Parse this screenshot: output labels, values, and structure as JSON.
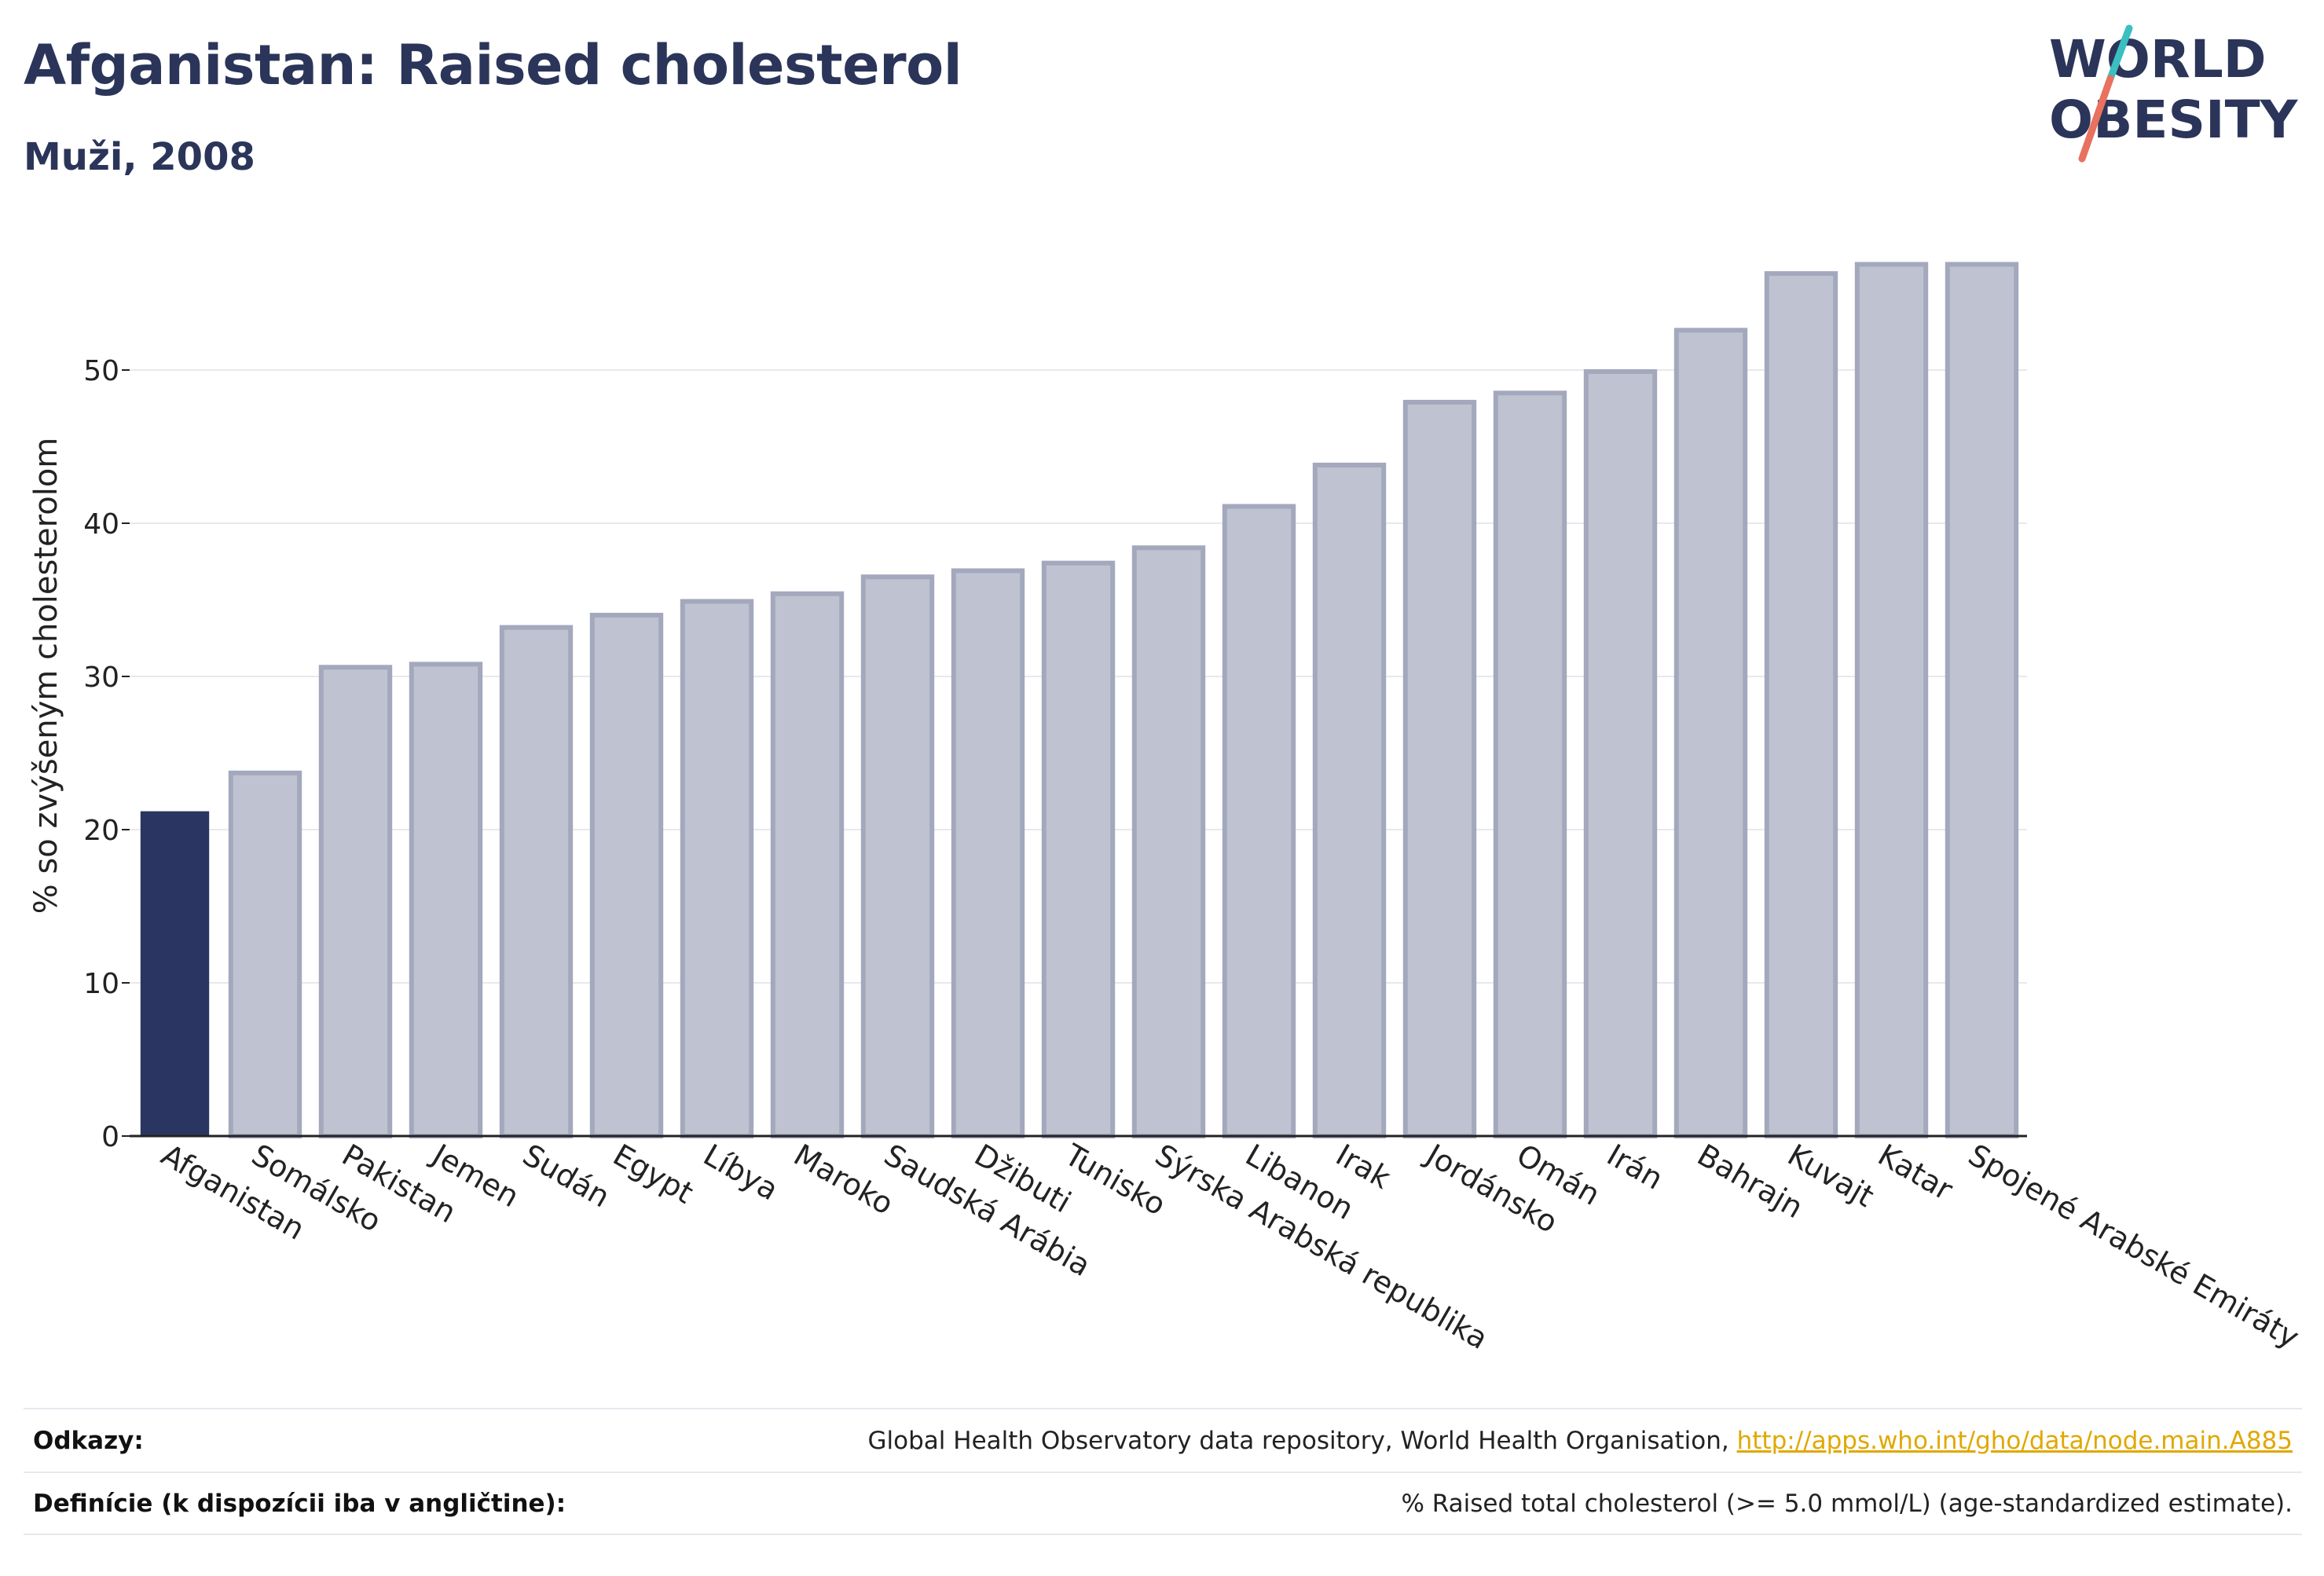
{
  "header": {
    "title": "Afganistan: Raised cholesterol",
    "subtitle": "Muži, 2008"
  },
  "logo": {
    "line1": "WORLD",
    "line2": "OBESITY",
    "accent_teal": "#3bbfc1",
    "accent_coral": "#e8715f"
  },
  "colors": {
    "highlight_bar": "#2b3561",
    "other_bar_fill": "#bfc2d0",
    "other_bar_stroke": "#a3a8bd",
    "text": "#2b3559"
  },
  "chart_data": {
    "type": "bar",
    "title": "Afganistan: Raised cholesterol",
    "subtitle": "Muži, 2008",
    "xlabel": "",
    "ylabel": "% so zvýšeným cholesterolom",
    "ylim": [
      0,
      58
    ],
    "yticks": [
      0,
      10,
      20,
      30,
      40,
      50
    ],
    "grid": true,
    "highlight": "Afganistan",
    "categories": [
      "Afganistan",
      "Somálsko",
      "Pakistan",
      "Jemen",
      "Sudán",
      "Egypt",
      "Líbya",
      "Maroko",
      "Saudská Arábia",
      "Džibuti",
      "Tunisko",
      "Sýrska Arabská republika",
      "Libanon",
      "Irak",
      "Jordánsko",
      "Omán",
      "Irán",
      "Bahrajn",
      "Kuvajt",
      "Katar",
      "Spojené Arabské Emiráty"
    ],
    "values": [
      21.2,
      23.7,
      30.6,
      30.8,
      33.2,
      34.0,
      34.9,
      35.4,
      36.5,
      36.9,
      37.4,
      38.4,
      41.1,
      43.8,
      47.9,
      48.5,
      49.9,
      52.6,
      56.3,
      56.9,
      56.9
    ]
  },
  "footer": {
    "sources_label": "Odkazy:",
    "sources_text": "Global Health Observatory data repository, World Health Organisation, ",
    "sources_link": "http://apps.who.int/gho/data/node.main.A885",
    "definitions_label": "Definície (k dispozícii iba v angličtine):",
    "definitions_text": "% Raised total cholesterol (>= 5.0 mmol/L) (age-standardized estimate)."
  }
}
